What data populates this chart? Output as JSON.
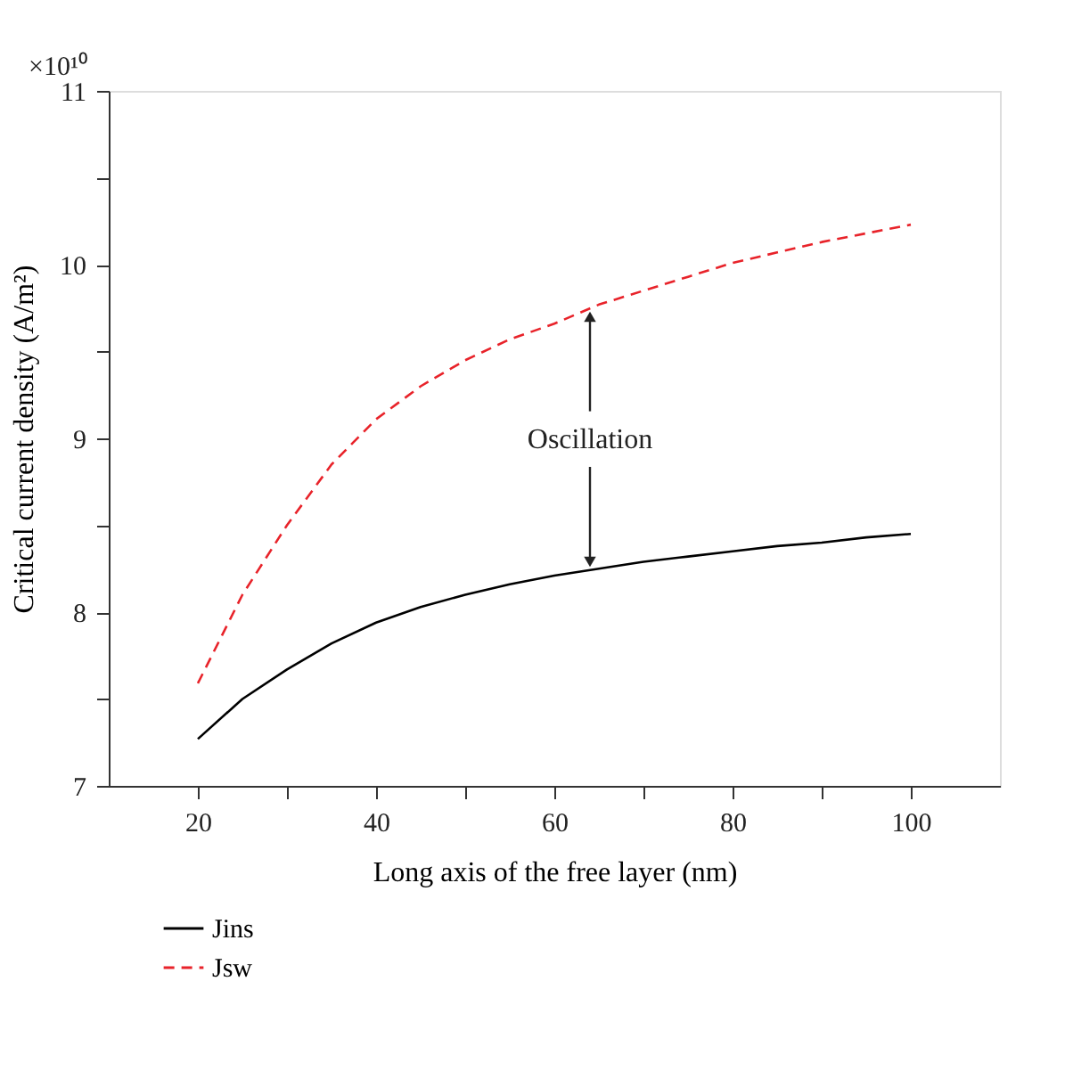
{
  "chart_data": {
    "type": "line",
    "xlabel": "Long axis of the free layer (nm)",
    "ylabel": "Critical current density (A/m²)",
    "x": [
      20,
      25,
      30,
      35,
      40,
      45,
      50,
      55,
      60,
      65,
      70,
      75,
      80,
      85,
      90,
      95,
      100
    ],
    "series": [
      {
        "name": "Jins",
        "color": "#000000",
        "line_style": "solid",
        "values": [
          7.27,
          7.5,
          7.67,
          7.82,
          7.94,
          8.03,
          8.1,
          8.16,
          8.21,
          8.25,
          8.29,
          8.32,
          8.35,
          8.38,
          8.4,
          8.43,
          8.45
        ]
      },
      {
        "name": "Jsw",
        "color": "#e8232a",
        "line_style": "dashed",
        "values": [
          7.59,
          8.1,
          8.5,
          8.85,
          9.11,
          9.3,
          9.45,
          9.57,
          9.66,
          9.77,
          9.85,
          9.93,
          10.01,
          10.07,
          10.13,
          10.18,
          10.23
        ]
      }
    ],
    "xlim": [
      10,
      110
    ],
    "xticks": [
      20,
      {
        "value": 30,
        "label": null
      },
      40,
      {
        "value": 50,
        "label": null
      },
      60,
      {
        "value": 70,
        "label": null
      },
      80,
      {
        "value": 90,
        "label": null
      },
      100
    ],
    "ylim": [
      7,
      11
    ],
    "yticks": [
      7,
      {
        "value": 7.5,
        "label": null
      },
      8,
      {
        "value": 8.5,
        "label": null
      },
      9,
      {
        "value": 9.5,
        "label": null
      },
      10,
      {
        "value": 10.5,
        "label": null
      },
      11
    ],
    "annotations": [
      "×10¹⁰",
      {
        "text": "Oscillation",
        "x": 64,
        "y": 9.75
      }
    ],
    "grid": false,
    "legend": "bottom left",
    "marker": "none"
  }
}
